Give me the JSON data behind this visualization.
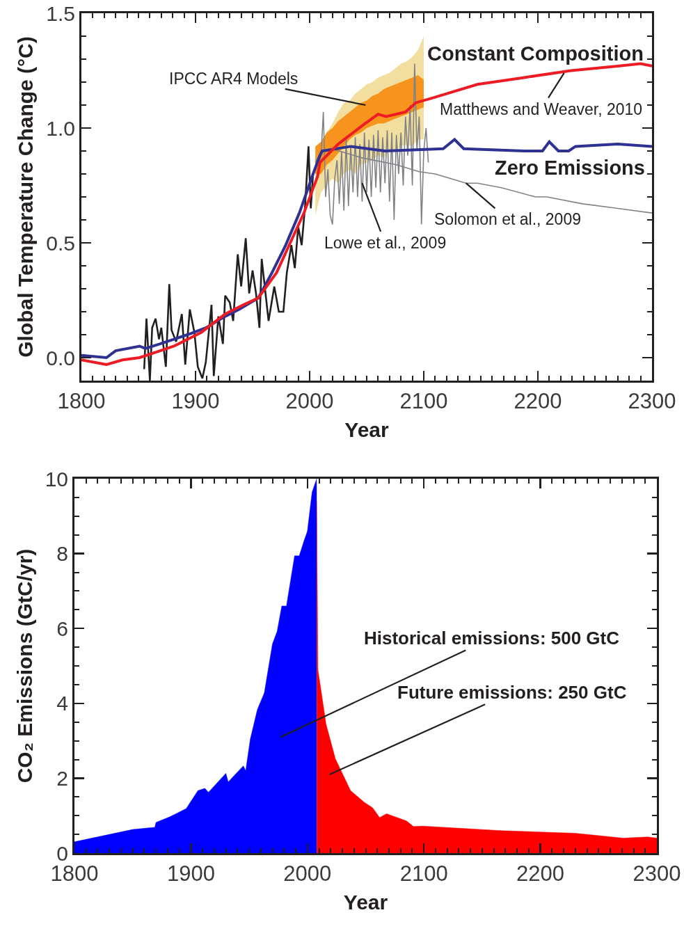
{
  "chart_data": [
    {
      "type": "line",
      "xlabel": "Year",
      "ylabel": "Global Temperature Change (°C)",
      "xlim": [
        1800,
        2300
      ],
      "ylim": [
        -0.1,
        1.5
      ],
      "xticks": [
        1800,
        {
          "value": 1810,
          "label": null
        },
        {
          "value": 1820,
          "label": null
        },
        {
          "value": 1830,
          "label": null
        },
        {
          "value": 1840,
          "label": null
        },
        {
          "value": 1850,
          "label": null
        },
        {
          "value": 1860,
          "label": null
        },
        {
          "value": 1870,
          "label": null
        },
        {
          "value": 1880,
          "label": null
        },
        {
          "value": 1890,
          "label": null
        },
        1900,
        {
          "value": 1910,
          "label": null
        },
        {
          "value": 1920,
          "label": null
        },
        {
          "value": 1930,
          "label": null
        },
        {
          "value": 1940,
          "label": null
        },
        {
          "value": 1950,
          "label": null
        },
        {
          "value": 1960,
          "label": null
        },
        {
          "value": 1970,
          "label": null
        },
        {
          "value": 1980,
          "label": null
        },
        {
          "value": 1990,
          "label": null
        },
        2000,
        {
          "value": 2010,
          "label": null
        },
        {
          "value": 2020,
          "label": null
        },
        {
          "value": 2030,
          "label": null
        },
        {
          "value": 2040,
          "label": null
        },
        {
          "value": 2050,
          "label": null
        },
        {
          "value": 2060,
          "label": null
        },
        {
          "value": 2070,
          "label": null
        },
        {
          "value": 2080,
          "label": null
        },
        {
          "value": 2090,
          "label": null
        },
        2100,
        {
          "value": 2110,
          "label": null
        },
        {
          "value": 2120,
          "label": null
        },
        {
          "value": 2130,
          "label": null
        },
        {
          "value": 2140,
          "label": null
        },
        {
          "value": 2150,
          "label": null
        },
        {
          "value": 2160,
          "label": null
        },
        {
          "value": 2170,
          "label": null
        },
        {
          "value": 2180,
          "label": null
        },
        {
          "value": 2190,
          "label": null
        },
        2200,
        {
          "value": 2210,
          "label": null
        },
        {
          "value": 2220,
          "label": null
        },
        {
          "value": 2230,
          "label": null
        },
        {
          "value": 2240,
          "label": null
        },
        {
          "value": 2250,
          "label": null
        },
        {
          "value": 2260,
          "label": null
        },
        {
          "value": 2270,
          "label": null
        },
        {
          "value": 2280,
          "label": null
        },
        {
          "value": 2290,
          "label": null
        },
        2300
      ],
      "yticks": [
        {
          "value": -0.1,
          "label": null
        },
        {
          "value": 0,
          "label": "0.0"
        },
        {
          "value": 0.1,
          "label": null
        },
        {
          "value": 0.2,
          "label": null
        },
        {
          "value": 0.3,
          "label": null
        },
        {
          "value": 0.4,
          "label": null
        },
        {
          "value": 0.5,
          "label": "0.5"
        },
        {
          "value": 0.6,
          "label": null
        },
        {
          "value": 0.7,
          "label": null
        },
        {
          "value": 0.8,
          "label": null
        },
        {
          "value": 0.9,
          "label": null
        },
        {
          "value": 1,
          "label": "1.0"
        },
        {
          "value": 1.1,
          "label": null
        },
        {
          "value": 1.2,
          "label": null
        },
        {
          "value": 1.3,
          "label": null
        },
        {
          "value": 1.4,
          "label": null
        },
        {
          "value": 1.5,
          "label": "1.5"
        }
      ],
      "series": [
        {
          "type": "area",
          "color": "#f2dfa0",
          "x": [
            2005,
            2010,
            2015,
            2020,
            2025,
            2030,
            2035,
            2040,
            2045,
            2050,
            2055,
            2060,
            2065,
            2070,
            2075,
            2080,
            2085,
            2090,
            2095,
            2100
          ],
          "values": [
            null,
            null,
            null,
            null,
            null,
            null,
            null,
            null,
            null,
            null,
            null,
            null,
            null,
            null,
            null,
            null,
            null,
            null,
            null,
            null
          ],
          "lower": [
            0.62,
            0.72,
            0.75,
            0.78,
            0.76,
            0.8,
            0.82,
            0.8,
            0.84,
            0.85,
            0.86,
            0.88,
            0.87,
            0.9,
            0.9,
            0.92,
            0.93,
            0.92,
            0.95,
            0.95
          ],
          "upper": [
            0.85,
            0.92,
            0.98,
            1.02,
            1.07,
            1.11,
            1.12,
            1.15,
            1.17,
            1.19,
            1.2,
            1.22,
            1.23,
            1.24,
            1.26,
            1.28,
            1.29,
            1.31,
            1.34,
            1.4
          ]
        },
        {
          "type": "area",
          "color": "#f7941d",
          "x": [
            2005,
            2010,
            2015,
            2020,
            2025,
            2030,
            2035,
            2040,
            2045,
            2050,
            2055,
            2060,
            2065,
            2070,
            2075,
            2080,
            2085,
            2090,
            2095,
            2100
          ],
          "values": [
            null,
            null,
            null,
            null,
            null,
            null,
            null,
            null,
            null,
            null,
            null,
            null,
            null,
            null,
            null,
            null,
            null,
            null,
            null,
            null
          ],
          "lower": [
            0.8,
            0.8,
            0.84,
            0.86,
            0.89,
            0.92,
            0.95,
            0.97,
            0.98,
            1.0,
            1.01,
            1.02,
            1.02,
            1.03,
            1.04,
            1.05,
            1.06,
            1.07,
            1.08,
            1.09
          ],
          "upper": [
            0.92,
            0.94,
            0.98,
            1.0,
            1.03,
            1.05,
            1.07,
            1.09,
            1.11,
            1.12,
            1.14,
            1.15,
            1.17,
            1.18,
            1.19,
            1.2,
            1.21,
            1.22,
            1.23,
            1.21
          ]
        },
        {
          "color": "#808285",
          "x": [
            2008,
            2010,
            2012,
            2014,
            2016,
            2018,
            2020,
            2022,
            2024,
            2026,
            2028,
            2030,
            2032,
            2034,
            2036,
            2038,
            2040,
            2042,
            2044,
            2046,
            2048,
            2050,
            2052,
            2054,
            2056,
            2058,
            2060,
            2062,
            2064,
            2066,
            2068,
            2070,
            2072,
            2074,
            2076,
            2078,
            2080,
            2082,
            2084,
            2086,
            2088,
            2090,
            2092,
            2094,
            2096,
            2098,
            2100,
            2102,
            2104
          ],
          "values": [
            0.85,
            0.88,
            1.07,
            0.7,
            0.82,
            0.62,
            0.58,
            0.78,
            0.86,
            0.67,
            0.9,
            0.64,
            0.95,
            0.66,
            0.92,
            0.72,
            0.96,
            0.7,
            0.93,
            0.68,
            0.98,
            0.72,
            0.95,
            0.7,
            0.97,
            0.74,
            0.99,
            0.72,
            0.96,
            0.76,
            0.99,
            0.68,
            0.98,
            0.6,
            0.97,
            0.8,
            0.98,
            0.75,
            1.05,
            0.88,
            1.1,
            0.75,
            1.28,
            0.9,
            1.05,
            0.58,
            0.9,
            1.0,
            0.85
          ]
        },
        {
          "color": "#808285",
          "x": [
            2005,
            2010,
            2019,
            2046,
            2076,
            2096,
            2110,
            2137,
            2147,
            2168,
            2198,
            2208,
            2239,
            2270,
            2300
          ],
          "values": [
            0.85,
            0.9,
            0.91,
            0.87,
            0.84,
            0.81,
            0.8,
            0.76,
            0.76,
            0.74,
            0.7,
            0.7,
            0.67,
            0.65,
            0.63
          ]
        },
        {
          "color": "#231f20",
          "x": [
            1855,
            1857,
            1860,
            1862,
            1865,
            1868,
            1870,
            1874,
            1877,
            1879,
            1883,
            1888,
            1891,
            1895,
            1899,
            1902,
            1906,
            1909,
            1914,
            1916,
            1920,
            1924,
            1926,
            1930,
            1933,
            1937,
            1940,
            1944,
            1947,
            1950,
            1953,
            1956,
            1958,
            1964,
            1969,
            1973,
            1977,
            1980,
            1984,
            1987,
            1990,
            1993,
            1996,
            1999,
            2001,
            2003
          ],
          "values": [
            -0.05,
            0.17,
            -0.1,
            0.13,
            0.17,
            0.08,
            0.13,
            -0.04,
            0.32,
            0.12,
            0.07,
            0.19,
            -0.03,
            0.21,
            0.11,
            -0.04,
            -0.09,
            -0.02,
            0.23,
            -0.08,
            0.18,
            0.06,
            0.27,
            0.24,
            0.16,
            0.45,
            0.31,
            0.52,
            0.28,
            0.38,
            0.28,
            0.13,
            0.43,
            0.16,
            0.31,
            0.2,
            0.2,
            0.37,
            0.49,
            0.39,
            0.57,
            0.49,
            0.66,
            0.92,
            0.65,
            0.8
          ]
        },
        {
          "name": "Zero Emissions",
          "color": "#2e3192",
          "x": [
            1800,
            1822,
            1830,
            1851,
            1856,
            1869,
            1881,
            1893,
            1909,
            1926,
            1938,
            1955,
            1967,
            1979,
            1991,
            2003,
            2009,
            2011,
            2036,
            2066,
            2117,
            2127,
            2135,
            2188,
            2204,
            2210,
            2218,
            2227,
            2233,
            2270,
            2300
          ],
          "values": [
            0.01,
            0.0,
            0.03,
            0.05,
            0.04,
            0.06,
            0.08,
            0.1,
            0.13,
            0.18,
            0.21,
            0.26,
            0.37,
            0.49,
            0.63,
            0.8,
            0.88,
            0.9,
            0.92,
            0.9,
            0.91,
            0.95,
            0.91,
            0.9,
            0.9,
            0.94,
            0.9,
            0.9,
            0.92,
            0.93,
            0.92
          ]
        },
        {
          "name": "Constant Composition",
          "color": "#ed1c24",
          "x": [
            1800,
            1822,
            1836,
            1851,
            1869,
            1881,
            1893,
            1905,
            1926,
            1942,
            1955,
            1971,
            1983,
            1995,
            2007,
            2009,
            2025,
            2046,
            2060,
            2067,
            2084,
            2093,
            2107,
            2147,
            2188,
            2229,
            2270,
            2290,
            2300
          ],
          "values": [
            -0.01,
            -0.03,
            -0.01,
            0.0,
            0.03,
            0.05,
            0.08,
            0.11,
            0.19,
            0.23,
            0.26,
            0.37,
            0.5,
            0.63,
            0.79,
            0.85,
            0.93,
            1.01,
            1.06,
            1.05,
            1.07,
            1.11,
            1.13,
            1.19,
            1.22,
            1.25,
            1.27,
            1.28,
            1.27
          ]
        }
      ],
      "annotations": [
        {
          "text": "IPCC AR4 Models",
          "x": 2049,
          "y": 1.1
        },
        {
          "text": "Matthews and Weaver, 2010",
          "x": 2223,
          "y": 1.24
        },
        {
          "text": "Lowe et al., 2009",
          "x": 2046,
          "y": 0.76
        },
        {
          "text": "Solomon et al., 2009",
          "x": 2137,
          "y": 0.76
        }
      ]
    },
    {
      "type": "area",
      "xlabel": "Year",
      "ylabel": "CO₂ Emissions (GtC/yr)",
      "xlim": [
        1800,
        2300
      ],
      "ylim": [
        0,
        10
      ],
      "xticks": [
        1800,
        {
          "value": 1810,
          "label": null
        },
        {
          "value": 1820,
          "label": null
        },
        {
          "value": 1830,
          "label": null
        },
        {
          "value": 1840,
          "label": null
        },
        {
          "value": 1850,
          "label": null
        },
        {
          "value": 1860,
          "label": null
        },
        {
          "value": 1870,
          "label": null
        },
        {
          "value": 1880,
          "label": null
        },
        {
          "value": 1890,
          "label": null
        },
        1900,
        {
          "value": 1910,
          "label": null
        },
        {
          "value": 1920,
          "label": null
        },
        {
          "value": 1930,
          "label": null
        },
        {
          "value": 1940,
          "label": null
        },
        {
          "value": 1950,
          "label": null
        },
        {
          "value": 1960,
          "label": null
        },
        {
          "value": 1970,
          "label": null
        },
        {
          "value": 1980,
          "label": null
        },
        {
          "value": 1990,
          "label": null
        },
        2000,
        {
          "value": 2010,
          "label": null
        },
        {
          "value": 2020,
          "label": null
        },
        {
          "value": 2030,
          "label": null
        },
        {
          "value": 2040,
          "label": null
        },
        {
          "value": 2050,
          "label": null
        },
        {
          "value": 2060,
          "label": null
        },
        {
          "value": 2070,
          "label": null
        },
        {
          "value": 2080,
          "label": null
        },
        {
          "value": 2090,
          "label": null
        },
        2100,
        {
          "value": 2110,
          "label": null
        },
        {
          "value": 2120,
          "label": null
        },
        {
          "value": 2130,
          "label": null
        },
        {
          "value": 2140,
          "label": null
        },
        {
          "value": 2150,
          "label": null
        },
        {
          "value": 2160,
          "label": null
        },
        {
          "value": 2170,
          "label": null
        },
        {
          "value": 2180,
          "label": null
        },
        {
          "value": 2190,
          "label": null
        },
        2200,
        {
          "value": 2210,
          "label": null
        },
        {
          "value": 2220,
          "label": null
        },
        {
          "value": 2230,
          "label": null
        },
        {
          "value": 2240,
          "label": null
        },
        {
          "value": 2250,
          "label": null
        },
        {
          "value": 2260,
          "label": null
        },
        {
          "value": 2270,
          "label": null
        },
        {
          "value": 2280,
          "label": null
        },
        {
          "value": 2290,
          "label": null
        },
        2300
      ],
      "yticks": [
        0,
        {
          "value": 0.5,
          "label": null
        },
        {
          "value": 1,
          "label": null
        },
        {
          "value": 1.5,
          "label": null
        },
        2,
        {
          "value": 2.5,
          "label": null
        },
        {
          "value": 3,
          "label": null
        },
        {
          "value": 3.5,
          "label": null
        },
        4,
        {
          "value": 4.5,
          "label": null
        },
        {
          "value": 5,
          "label": null
        },
        {
          "value": 5.5,
          "label": null
        },
        6,
        {
          "value": 6.5,
          "label": null
        },
        {
          "value": 7,
          "label": null
        },
        {
          "value": 7.5,
          "label": null
        },
        8,
        {
          "value": 8.5,
          "label": null
        },
        {
          "value": 9,
          "label": null
        },
        {
          "value": 9.5,
          "label": null
        },
        10
      ],
      "series": [
        {
          "color": "#0000ff",
          "x": [
            1800,
            1850,
            1869,
            1870,
            1882,
            1896,
            1906,
            1912,
            1915,
            1930,
            1932,
            1945,
            1947,
            1951,
            1957,
            1963,
            1970,
            1974,
            1978,
            1982,
            1989,
            1993,
            1997,
            2000,
            2004,
            2008
          ],
          "values": [
            0.3,
            0.63,
            0.69,
            0.82,
            0.97,
            1.19,
            1.67,
            1.73,
            1.62,
            2.13,
            1.9,
            2.33,
            2.2,
            3.05,
            3.83,
            4.28,
            5.59,
            5.92,
            6.6,
            6.6,
            7.94,
            7.94,
            8.33,
            8.6,
            9.64,
            10.0
          ]
        },
        {
          "color": "#ff0000",
          "x": [
            2008,
            2009,
            2012,
            2016,
            2024,
            2037,
            2049,
            2056,
            2062,
            2068,
            2085,
            2091,
            2099,
            2166,
            2230,
            2271,
            2292,
            2300
          ],
          "values": [
            9.4,
            4.9,
            4.28,
            3.44,
            2.52,
            1.67,
            1.35,
            1.21,
            0.95,
            1.05,
            0.86,
            0.71,
            0.72,
            0.6,
            0.53,
            0.4,
            0.43,
            0.4
          ]
        }
      ],
      "annotations": [
        "Historical emissions: 500 GtC",
        "Future emissions: 250 GtC"
      ]
    }
  ]
}
